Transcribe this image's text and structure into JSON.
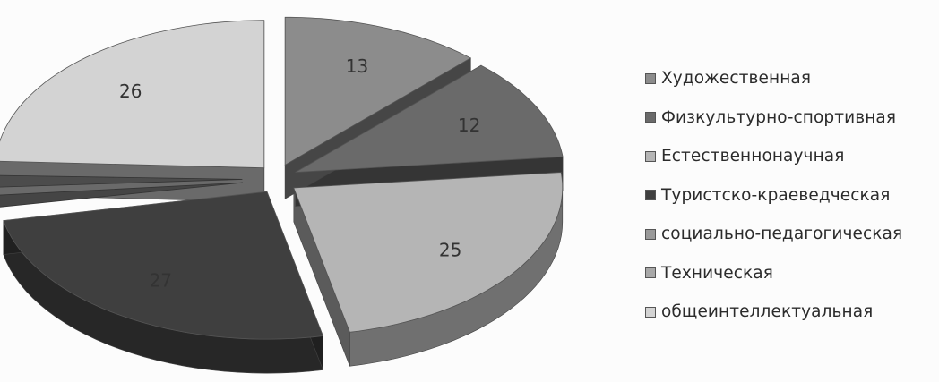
{
  "chart_data": {
    "type": "pie",
    "style": "3d-exploded",
    "legend_position": "right",
    "series": [
      {
        "name": "Художественная",
        "value": 13,
        "color": "#8c8c8c"
      },
      {
        "name": "Физкультурно-спортивная",
        "value": 12,
        "color": "#6a6a6a"
      },
      {
        "name": "Естественнонаучная",
        "value": 25,
        "color": "#b5b5b5"
      },
      {
        "name": "Туристско-краеведческая",
        "value": 27,
        "color": "#3f3f3f"
      },
      {
        "name": "социально-педагогическая",
        "value": 0,
        "color": "#999999"
      },
      {
        "name": "Техническая",
        "value": 0,
        "color": "#a8a8a8"
      },
      {
        "name": "общеинтеллектуальная",
        "value": 26,
        "color": "#d3d3d3"
      }
    ],
    "data_labels": [
      "13",
      "12",
      "25",
      "27",
      "0",
      "0",
      "26"
    ]
  }
}
